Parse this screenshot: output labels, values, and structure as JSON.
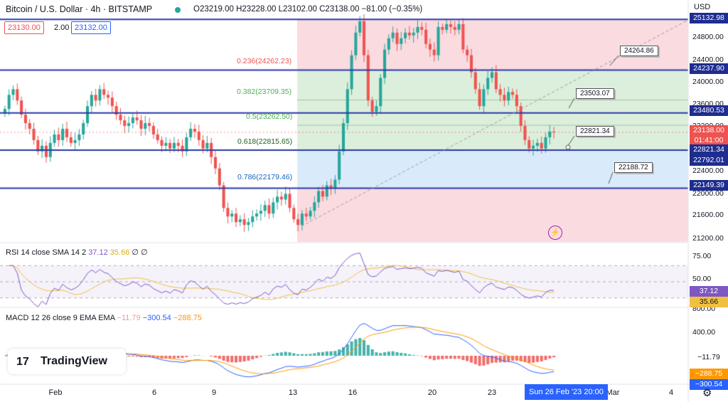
{
  "header": {
    "symbol": "Bitcoin / U.S. Dollar · 4h · BITSTAMP",
    "ohlc": "O23219.00  H23228.00  L23102.00  C23138.00  −81.00 (−0.35%)",
    "currency": "USD",
    "bid": "23130.00",
    "spread": "2.00",
    "ask": "23132.00"
  },
  "colors": {
    "up": "#26a69a",
    "down": "#ef5350",
    "level_line": "#2a3aa8",
    "zone_red": "#fadbe0",
    "zone_green": "#dcefdc",
    "zone_blue": "#d9ebfb",
    "rsi": "#7e57c2",
    "rsi_sma": "#f0c040",
    "macd": "#2962ff",
    "signal": "#ff9800"
  },
  "fib_labels": [
    {
      "id": "fib-0236",
      "text": "0.236(24262.23)",
      "price": 24262.23,
      "color": "#ef5350"
    },
    {
      "id": "fib-0382",
      "text": "0.382(23709.35)",
      "price": 23709.35,
      "color": "#4caf50"
    },
    {
      "id": "fib-05",
      "text": "0.5(23262.50)",
      "price": 23262.5,
      "color": "#4caf50"
    },
    {
      "id": "fib-0618",
      "text": "0.618(22815.65)",
      "price": 22815.65,
      "color": "#1b5e20"
    },
    {
      "id": "fib-0786",
      "text": "0.786(22179.46)",
      "price": 22179.46,
      "color": "#1565c0"
    }
  ],
  "callouts": [
    {
      "id": "callout-24264",
      "text": "24264.86"
    },
    {
      "id": "callout-23503",
      "text": "23503.07"
    },
    {
      "id": "callout-22821",
      "text": "22821.34"
    },
    {
      "id": "callout-22188",
      "text": "22188.72"
    }
  ],
  "price_axis": {
    "labels": [
      "24800.00",
      "24400.00",
      "24000.00",
      "23600.00",
      "23200.00",
      "22400.00",
      "22000.00",
      "21600.00",
      "21200.00"
    ],
    "tags": [
      {
        "id": "tag-25132",
        "text": "25132.98",
        "color": "#1e2d8f"
      },
      {
        "id": "tag-24237",
        "text": "24237.90",
        "color": "#1e2d8f"
      },
      {
        "id": "tag-23480",
        "text": "23480.53",
        "color": "#1e2d8f"
      },
      {
        "id": "tag-last",
        "text": "23138.00",
        "color": "#ef5350"
      },
      {
        "id": "tag-countdown",
        "text": "01:41:00",
        "color": "#ef5350"
      },
      {
        "id": "tag-22821",
        "text": "22821.34",
        "color": "#1e2d8f"
      },
      {
        "id": "tag-22792",
        "text": "22792.01",
        "color": "#1e2d8f"
      },
      {
        "id": "tag-22149",
        "text": "22149.39",
        "color": "#1e2d8f"
      }
    ]
  },
  "rsi": {
    "title": "RSI 14 close SMA 14 2",
    "value": "37.12",
    "sma": "35.66",
    "extra": "∅ ∅",
    "axis": [
      "75.00",
      "50.00"
    ],
    "tag_rsi": "37.12",
    "tag_sma": "35.66"
  },
  "macd": {
    "title": "MACD 12 26 close 9 EMA EMA",
    "hist": "−11.79",
    "macd": "−300.54",
    "signal": "−288.75",
    "axis": [
      "800.00",
      "400.00"
    ],
    "tag_hist": "−11.79",
    "tag_signal": "−288.75",
    "tag_macd": "−300.54"
  },
  "x_axis": [
    "Feb",
    "6",
    "9",
    "13",
    "16",
    "20",
    "23",
    "Mar",
    "4"
  ],
  "cursor_time": "Sun 26 Feb '23   20:00",
  "logo": {
    "mark": "17",
    "text": "TradingView"
  },
  "chart_data": {
    "type": "candlestick",
    "timeframe": "4h",
    "ylim": [
      21200,
      25200
    ],
    "levels": [
      25132.98,
      24237.9,
      23480.53,
      22821.34,
      22149.39
    ],
    "last_price": 23138.0,
    "closes": [
      23550,
      23800,
      23900,
      23700,
      23450,
      23300,
      23200,
      23000,
      22800,
      22900,
      22700,
      22950,
      23100,
      23000,
      23200,
      23050,
      22950,
      23000,
      23100,
      23300,
      23600,
      23800,
      23700,
      23900,
      23800,
      23750,
      23600,
      23450,
      23350,
      23250,
      23300,
      23400,
      23350,
      23200,
      23300,
      23250,
      23100,
      23000,
      22900,
      22950,
      22850,
      22950,
      22900,
      22800,
      23050,
      23200,
      23150,
      23000,
      22850,
      22950,
      22700,
      22500,
      22200,
      21800,
      21650,
      21700,
      21550,
      21600,
      21500,
      21550,
      21650,
      21700,
      21750,
      21850,
      21700,
      21900,
      22000,
      21950,
      22050,
      21800,
      21600,
      21500,
      21700,
      21650,
      21750,
      21900,
      22100,
      22000,
      22200,
      22150,
      22300,
      22800,
      23300,
      23900,
      24500,
      24900,
      25100,
      24500,
      23700,
      23500,
      23600,
      24100,
      24600,
      24800,
      24900,
      24700,
      24800,
      24900,
      24850,
      24900,
      25000,
      24950,
      24700,
      24600,
      24500,
      25000,
      24950,
      25050,
      25000,
      24950,
      25050,
      24600,
      24500,
      24200,
      23900,
      23600,
      23900,
      24100,
      24200,
      23900,
      23800,
      23700,
      23850,
      23800,
      23600,
      23250,
      23000,
      22850,
      22900,
      22950,
      22850,
      23050,
      23150,
      23138
    ]
  }
}
